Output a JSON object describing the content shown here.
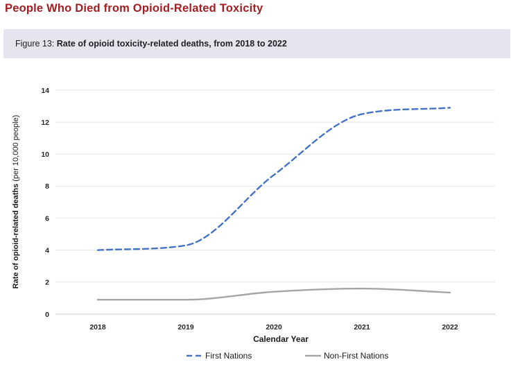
{
  "header": {
    "title": "People Who Died from Opioid-Related Toxicity"
  },
  "figure": {
    "label": "Figure 13: ",
    "title": "Rate of opioid toxicity-related deaths, from 2018 to 2022"
  },
  "colors": {
    "heading": "#A31E22",
    "banner_bg": "#E5E5F0",
    "grid": "#E4E4E4",
    "axis_line": "#CFCFCF",
    "tick_text": "#262626",
    "first_nations": "#4472C4",
    "non_first_nations": "#A5A5A5"
  },
  "chart_data": {
    "type": "line",
    "x": [
      "2018",
      "2019",
      "2020",
      "2021",
      "2022"
    ],
    "series": [
      {
        "name": "First Nations",
        "values": [
          4.0,
          4.3,
          8.7,
          12.5,
          12.9
        ],
        "color": "#4472C4",
        "style": "dashed"
      },
      {
        "name": "Non-First Nations",
        "values": [
          0.9,
          0.9,
          1.4,
          1.6,
          1.35
        ],
        "color": "#A5A5A5",
        "style": "solid"
      }
    ],
    "xlabel": "Calendar Year",
    "ylabel_bold": "Rate of opioid-related deaths",
    "ylabel_regular": " (per 10,000 people)",
    "ylim": [
      0,
      14
    ],
    "yticks": [
      0,
      2,
      4,
      6,
      8,
      10,
      12,
      14
    ],
    "grid": "horizontal",
    "legend_position": "bottom"
  }
}
